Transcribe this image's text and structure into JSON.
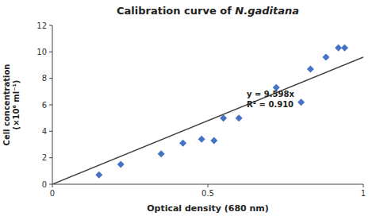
{
  "chart_data": {
    "type": "scatter",
    "title": "Calibration curve of ",
    "title_italic": "N.gaditana",
    "xlabel": "Optical density (680 nm)",
    "ylabel": [
      "Cell concentration",
      "(×10⁶ ml⁻¹)"
    ],
    "series": [
      {
        "type": "scatter",
        "marker": "diamond",
        "color": "#4472C4",
        "x": [
          0.15,
          0.22,
          0.35,
          0.42,
          0.48,
          0.52,
          0.55,
          0.6,
          0.72,
          0.8,
          0.83,
          0.88,
          0.92,
          0.94
        ],
        "values": [
          0.7,
          1.5,
          2.3,
          3.1,
          3.4,
          3.3,
          5.0,
          5.0,
          7.3,
          6.2,
          8.7,
          9.6,
          10.3,
          10.3
        ]
      },
      {
        "type": "line",
        "color": "#404040",
        "x": [
          0,
          1
        ],
        "values": [
          0,
          9.598
        ]
      }
    ],
    "annotations": [
      {
        "lines": [
          "y = 9.598x",
          "R² = 0.910"
        ],
        "x": 0.625,
        "y": 7.2
      }
    ],
    "xlim": [
      0,
      1
    ],
    "ylim": [
      0,
      12
    ],
    "xticks": [
      0,
      0.5,
      1
    ],
    "yticks": [
      0,
      2,
      4,
      6,
      8,
      10,
      12
    ],
    "grid": false
  }
}
